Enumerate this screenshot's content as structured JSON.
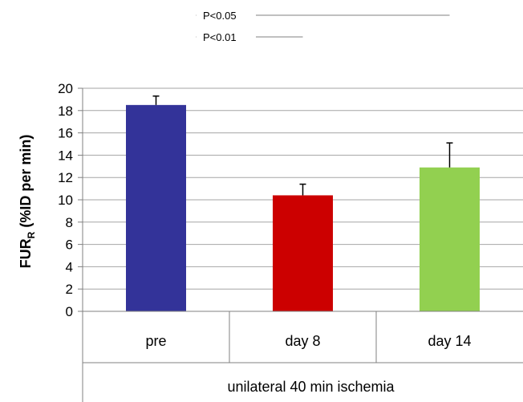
{
  "chart_data": {
    "type": "bar",
    "categories": [
      "pre",
      "day 8",
      "day 14"
    ],
    "values": [
      18.5,
      10.4,
      12.9
    ],
    "error": [
      0.8,
      1.0,
      2.2
    ],
    "colors": [
      "#333399",
      "#cc0000",
      "#92d050"
    ],
    "ylabel": {
      "main": "FUR",
      "sub": "R",
      "rest": " (%ID per min)"
    },
    "group_label": "unilateral 40 min ischemia",
    "ylim": [
      0,
      20
    ],
    "yticks": [
      "0",
      "2",
      "4",
      "6",
      "8",
      "10",
      "12",
      "14",
      "16",
      "18",
      "20"
    ],
    "grid": true,
    "annotations": [
      {
        "text": "P<0.05",
        "from": "pre",
        "to": "day 14"
      },
      {
        "text": "P<0.01",
        "from": "pre",
        "to": "day 8"
      }
    ]
  }
}
